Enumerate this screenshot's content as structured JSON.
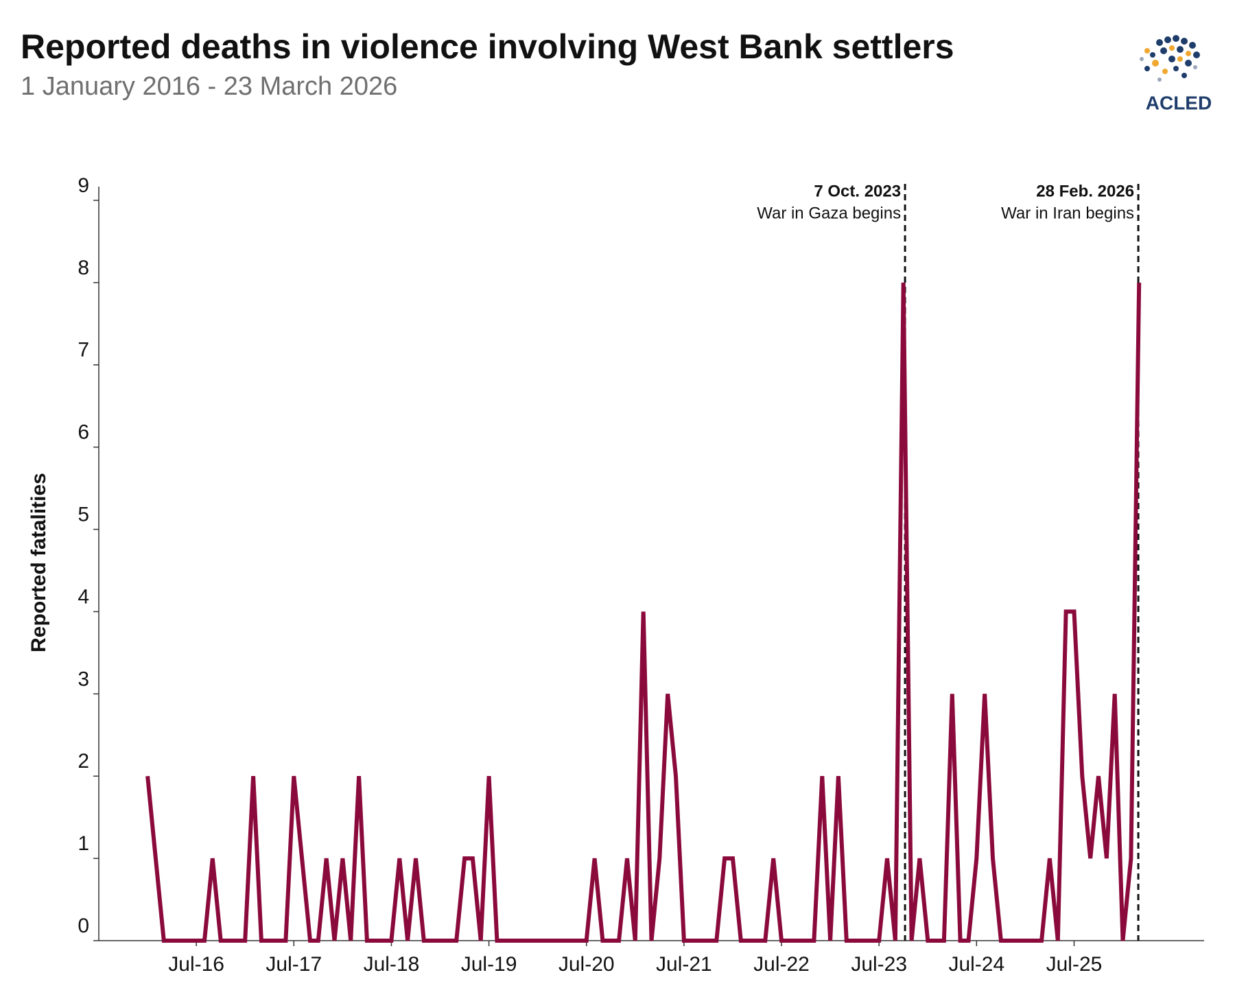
{
  "chart_data": {
    "type": "line",
    "title": "Reported deaths in violence involving West Bank settlers",
    "subtitle": "1 January 2016 - 23 March 2026",
    "y_label": "Reported fatalities",
    "source": "ACLED",
    "x": [
      "2016-01",
      "2016-02",
      "2016-03",
      "2016-04",
      "2016-05",
      "2016-06",
      "2016-07",
      "2016-08",
      "2016-09",
      "2016-10",
      "2016-11",
      "2016-12",
      "2017-01",
      "2017-02",
      "2017-03",
      "2017-04",
      "2017-05",
      "2017-06",
      "2017-07",
      "2017-08",
      "2017-09",
      "2017-10",
      "2017-11",
      "2017-12",
      "2018-01",
      "2018-02",
      "2018-03",
      "2018-04",
      "2018-05",
      "2018-06",
      "2018-07",
      "2018-08",
      "2018-09",
      "2018-10",
      "2018-11",
      "2018-12",
      "2019-01",
      "2019-02",
      "2019-03",
      "2019-04",
      "2019-05",
      "2019-06",
      "2019-07",
      "2019-08",
      "2019-09",
      "2019-10",
      "2019-11",
      "2019-12",
      "2020-01",
      "2020-02",
      "2020-03",
      "2020-04",
      "2020-05",
      "2020-06",
      "2020-07",
      "2020-08",
      "2020-09",
      "2020-10",
      "2020-11",
      "2020-12",
      "2021-01",
      "2021-02",
      "2021-03",
      "2021-04",
      "2021-05",
      "2021-06",
      "2021-07",
      "2021-08",
      "2021-09",
      "2021-10",
      "2021-11",
      "2021-12",
      "2022-01",
      "2022-02",
      "2022-03",
      "2022-04",
      "2022-05",
      "2022-06",
      "2022-07",
      "2022-08",
      "2022-09",
      "2022-10",
      "2022-11",
      "2022-12",
      "2023-01",
      "2023-02",
      "2023-03",
      "2023-04",
      "2023-05",
      "2023-06",
      "2023-07",
      "2023-08",
      "2023-09",
      "2023-10",
      "2023-11",
      "2023-12",
      "2024-01",
      "2024-02",
      "2024-03",
      "2024-04",
      "2024-05",
      "2024-06",
      "2024-07",
      "2024-08",
      "2024-09",
      "2024-10",
      "2024-11",
      "2024-12",
      "2025-01",
      "2025-02",
      "2025-03",
      "2025-04",
      "2025-05",
      "2025-06",
      "2025-07",
      "2025-08",
      "2025-09",
      "2025-10",
      "2025-11",
      "2025-12",
      "2026-01",
      "2026-02",
      "2026-03"
    ],
    "series": [
      {
        "name": "Reported fatalities",
        "color": "#8b0a3c",
        "values": [
          2,
          1,
          0,
          0,
          0,
          0,
          0,
          0,
          1,
          0,
          0,
          0,
          0,
          2,
          0,
          0,
          0,
          0,
          2,
          1,
          0,
          0,
          1,
          0,
          1,
          0,
          2,
          0,
          0,
          0,
          0,
          1,
          0,
          1,
          0,
          0,
          0,
          0,
          0,
          1,
          1,
          0,
          2,
          0,
          0,
          0,
          0,
          0,
          0,
          0,
          0,
          0,
          0,
          0,
          0,
          1,
          0,
          0,
          0,
          1,
          0,
          4,
          0,
          1,
          3,
          2,
          0,
          0,
          0,
          0,
          0,
          1,
          1,
          0,
          0,
          0,
          0,
          1,
          0,
          0,
          0,
          0,
          0,
          2,
          0,
          2,
          0,
          0,
          0,
          0,
          0,
          1,
          0,
          8,
          0,
          1,
          0,
          0,
          0,
          3,
          0,
          0,
          1,
          3,
          1,
          0,
          0,
          0,
          0,
          0,
          0,
          1,
          0,
          4,
          4,
          2,
          1,
          2,
          1,
          3,
          0,
          1,
          8
        ]
      }
    ],
    "xlim": [
      "2015-07",
      "2026-11"
    ],
    "xticks": [
      {
        "value": "2016-07",
        "label": "Jul-16"
      },
      {
        "value": "2017-07",
        "label": "Jul-17"
      },
      {
        "value": "2018-07",
        "label": "Jul-18"
      },
      {
        "value": "2019-07",
        "label": "Jul-19"
      },
      {
        "value": "2020-07",
        "label": "Jul-20"
      },
      {
        "value": "2021-07",
        "label": "Jul-21"
      },
      {
        "value": "2022-07",
        "label": "Jul-22"
      },
      {
        "value": "2023-07",
        "label": "Jul-23"
      },
      {
        "value": "2024-07",
        "label": "Jul-24"
      },
      {
        "value": "2025-07",
        "label": "Jul-25"
      }
    ],
    "ylim": [
      0,
      9
    ],
    "yticks": [
      0,
      1,
      2,
      3,
      4,
      5,
      6,
      7,
      8,
      9
    ],
    "grid": false,
    "annotations": [
      {
        "x": "2023-10-07",
        "label": "7 Oct. 2023",
        "text": "War in Gaza begins"
      },
      {
        "x": "2026-02-28",
        "label": "28 Feb. 2026",
        "text": "War in Iran begins"
      }
    ]
  }
}
